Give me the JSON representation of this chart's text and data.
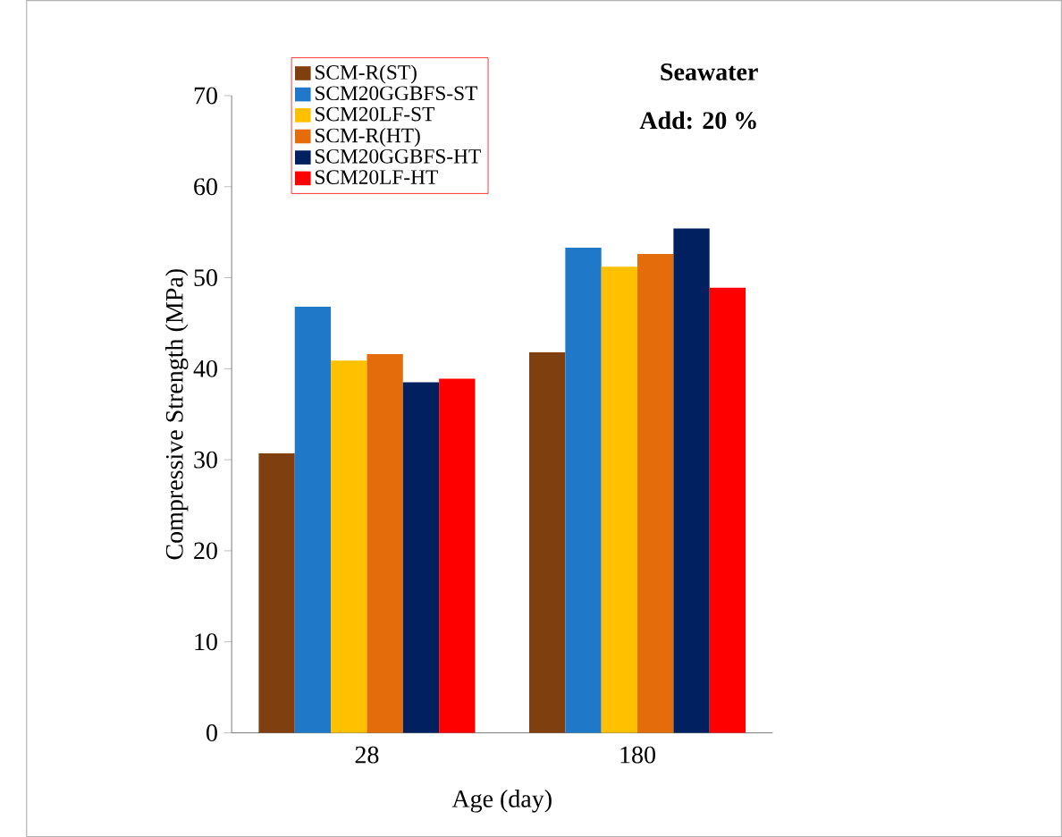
{
  "chart_data": {
    "type": "bar",
    "xlabel": "Age (day)",
    "ylabel": "Compressive Strength (MPa)",
    "categories": [
      "28",
      "180"
    ],
    "series": [
      {
        "name": "SCM-R(ST)",
        "color": "#7f3f0f",
        "values": [
          30.7,
          41.8
        ]
      },
      {
        "name": "SCM20GGBFS-ST",
        "color": "#1f78c8",
        "values": [
          46.8,
          53.3
        ]
      },
      {
        "name": "SCM20LF-ST",
        "color": "#ffc000",
        "values": [
          40.9,
          51.2
        ]
      },
      {
        "name": "SCM-R(HT)",
        "color": "#e46c0a",
        "values": [
          41.6,
          52.6
        ]
      },
      {
        "name": "SCM20GGBFS-HT",
        "color": "#002060",
        "values": [
          38.5,
          55.4
        ]
      },
      {
        "name": "SCM20LF-HT",
        "color": "#ff0000",
        "values": [
          38.9,
          48.9
        ]
      }
    ],
    "ylim": [
      0,
      70
    ],
    "yticks": [
      0,
      10,
      20,
      30,
      40,
      50,
      60,
      70
    ],
    "legend": "top left",
    "annotations": [
      "Seawater",
      "Add: 20 %"
    ]
  }
}
